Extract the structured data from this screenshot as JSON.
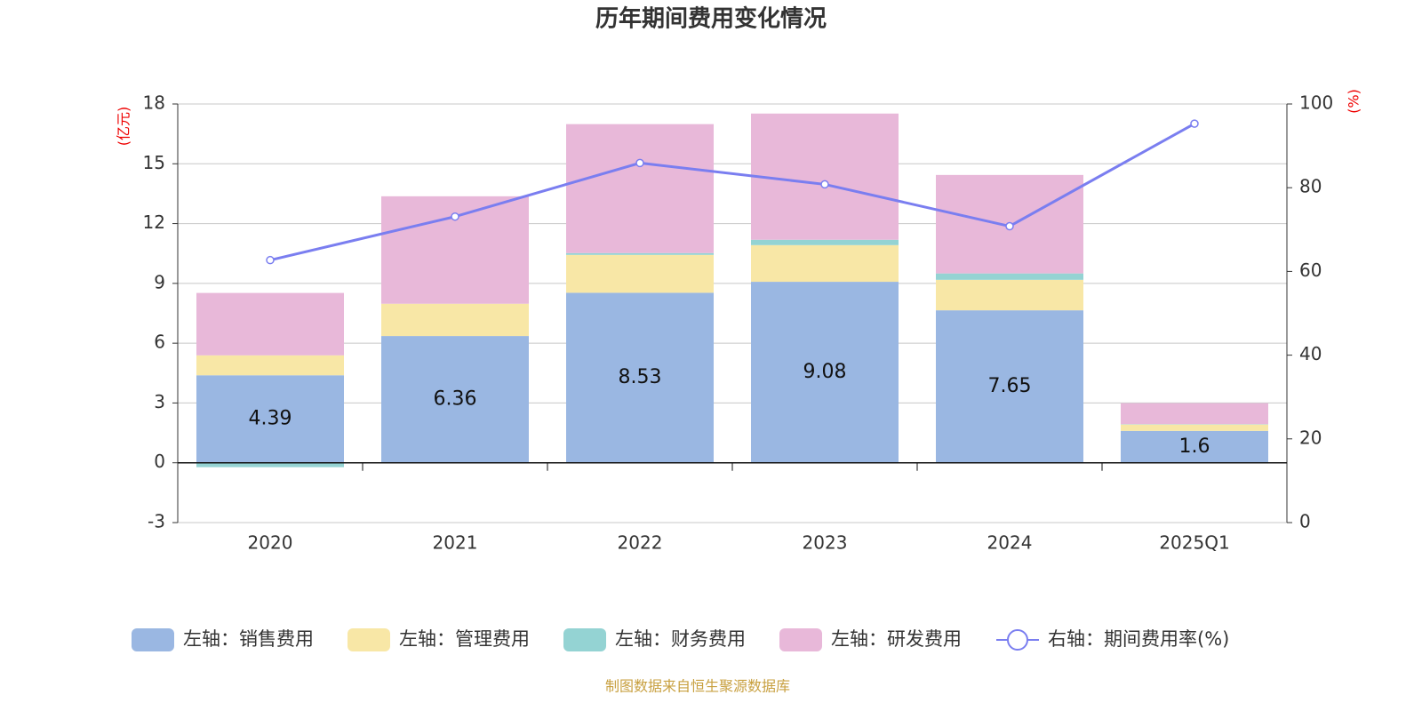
{
  "chart_data": {
    "type": "bar",
    "title": "历年期间费用变化情况",
    "categories": [
      "2020",
      "2021",
      "2022",
      "2023",
      "2024",
      "2025Q1"
    ],
    "y_label": "(亿元)",
    "y2_label": "(%)",
    "ylim": [
      -3,
      18
    ],
    "yticks": [
      -3,
      0,
      3,
      6,
      9,
      12,
      15,
      18
    ],
    "y2lim": [
      0,
      100
    ],
    "y2ticks": [
      0,
      20,
      40,
      60,
      80,
      100
    ],
    "grid": true,
    "legend": "bottom",
    "series": [
      {
        "name": "左轴：销售费用",
        "type": "bar",
        "color": "#9ab7e2",
        "values": [
          4.39,
          6.36,
          8.53,
          9.08,
          7.65,
          1.6
        ],
        "show_labels": true
      },
      {
        "name": "左轴：管理费用",
        "type": "bar",
        "color": "#f8e7a6",
        "values": [
          1.0,
          1.62,
          1.9,
          1.84,
          1.53,
          0.32
        ]
      },
      {
        "name": "左轴：财务费用",
        "type": "bar",
        "color": "#94d3d3",
        "values": [
          -0.22,
          -0.03,
          0.09,
          0.27,
          0.32,
          0.02
        ]
      },
      {
        "name": "左轴：研发费用",
        "type": "bar",
        "color": "#e8b8d9",
        "values": [
          3.13,
          5.39,
          6.47,
          6.33,
          4.94,
          1.05
        ]
      },
      {
        "name": "右轴：期间费用率(%)",
        "type": "line",
        "axis": "y2",
        "color": "#7a7ef0",
        "values": [
          62.7,
          73.1,
          85.9,
          80.8,
          70.8,
          95.3
        ]
      }
    ],
    "source": "制图数据来自恒生聚源数据库"
  }
}
